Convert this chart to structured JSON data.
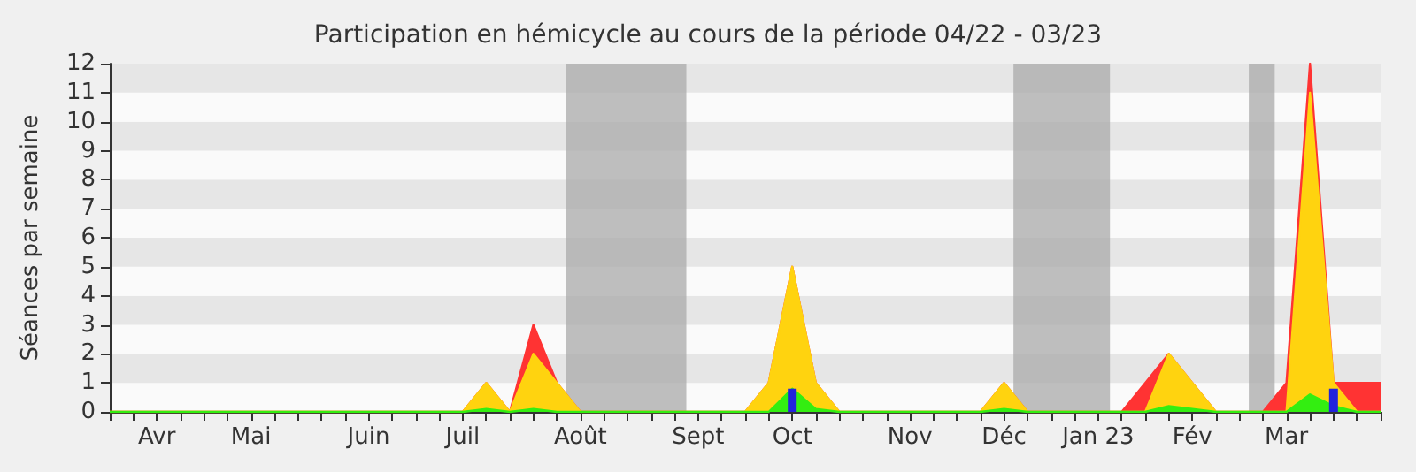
{
  "chart_data": {
    "type": "area",
    "title": "Participation en hémicycle au cours de la période 04/22 - 03/23",
    "ylabel": "Séances par semaine",
    "categories": [
      null,
      null,
      "Avr",
      null,
      null,
      null,
      "Mai",
      null,
      null,
      null,
      null,
      "Juin",
      null,
      null,
      null,
      "Juil",
      null,
      null,
      null,
      null,
      "Août",
      null,
      null,
      null,
      null,
      "Sept",
      null,
      null,
      null,
      "Oct",
      null,
      null,
      null,
      null,
      "Nov",
      null,
      null,
      null,
      "Déc",
      null,
      null,
      null,
      "Jan 23",
      null,
      null,
      null,
      "Fév",
      null,
      null,
      null,
      "Mar",
      null,
      null,
      null,
      null
    ],
    "series": [
      {
        "color": "#ff3333",
        "values": [
          0,
          0,
          0,
          0,
          0,
          0,
          0,
          0,
          0,
          0,
          0,
          0,
          0,
          0,
          0,
          0,
          1,
          0,
          3,
          1,
          0,
          0,
          0,
          0,
          0,
          0,
          0,
          0,
          1,
          5,
          1,
          0,
          0,
          0,
          0,
          0,
          0,
          0,
          1,
          0,
          0,
          0,
          0,
          0,
          1,
          2,
          1,
          0,
          0,
          0,
          1,
          12,
          1,
          1,
          1
        ]
      },
      {
        "color": "#ffd30f",
        "values": [
          0,
          0,
          0,
          0,
          0,
          0,
          0,
          0,
          0,
          0,
          0,
          0,
          0,
          0,
          0,
          0,
          1,
          0,
          2,
          1,
          0,
          0,
          0,
          0,
          0,
          0,
          0,
          0,
          1,
          5,
          1,
          0,
          0,
          0,
          0,
          0,
          0,
          0,
          1,
          0,
          0,
          0,
          0,
          0,
          0,
          2,
          1,
          0,
          0,
          0,
          0,
          11,
          1,
          0,
          0
        ]
      },
      {
        "color": "#33ee11",
        "values": [
          0,
          0,
          0,
          0,
          0,
          0,
          0,
          0,
          0,
          0,
          0,
          0,
          0,
          0,
          0,
          0,
          0.1,
          0,
          0.1,
          0,
          0,
          0,
          0,
          0,
          0,
          0,
          0,
          0,
          0,
          0.8,
          0.1,
          0,
          0,
          0,
          0,
          0,
          0,
          0,
          0.1,
          0,
          0,
          0,
          0,
          0,
          0,
          0.2,
          0.1,
          0,
          0,
          0,
          0,
          0.6,
          0.2,
          0,
          0
        ]
      },
      {
        "type": "bar",
        "color": "#2222dd",
        "values": [
          0,
          0,
          0,
          0,
          0,
          0,
          0,
          0,
          0,
          0,
          0,
          0,
          0,
          0,
          0,
          0,
          0,
          0,
          0,
          0,
          0,
          0,
          0,
          0,
          0,
          0,
          0,
          0,
          0,
          0.8,
          0,
          0,
          0,
          0,
          0,
          0,
          0,
          0,
          0,
          0,
          0,
          0,
          0,
          0,
          0,
          0,
          0,
          0,
          0,
          0,
          0,
          0,
          0.8,
          0,
          0
        ]
      }
    ],
    "ylim": [
      0,
      12
    ],
    "yticks": [
      0,
      1,
      2,
      3,
      4,
      5,
      6,
      7,
      8,
      9,
      10,
      11,
      12
    ],
    "line_style": "solid"
  }
}
